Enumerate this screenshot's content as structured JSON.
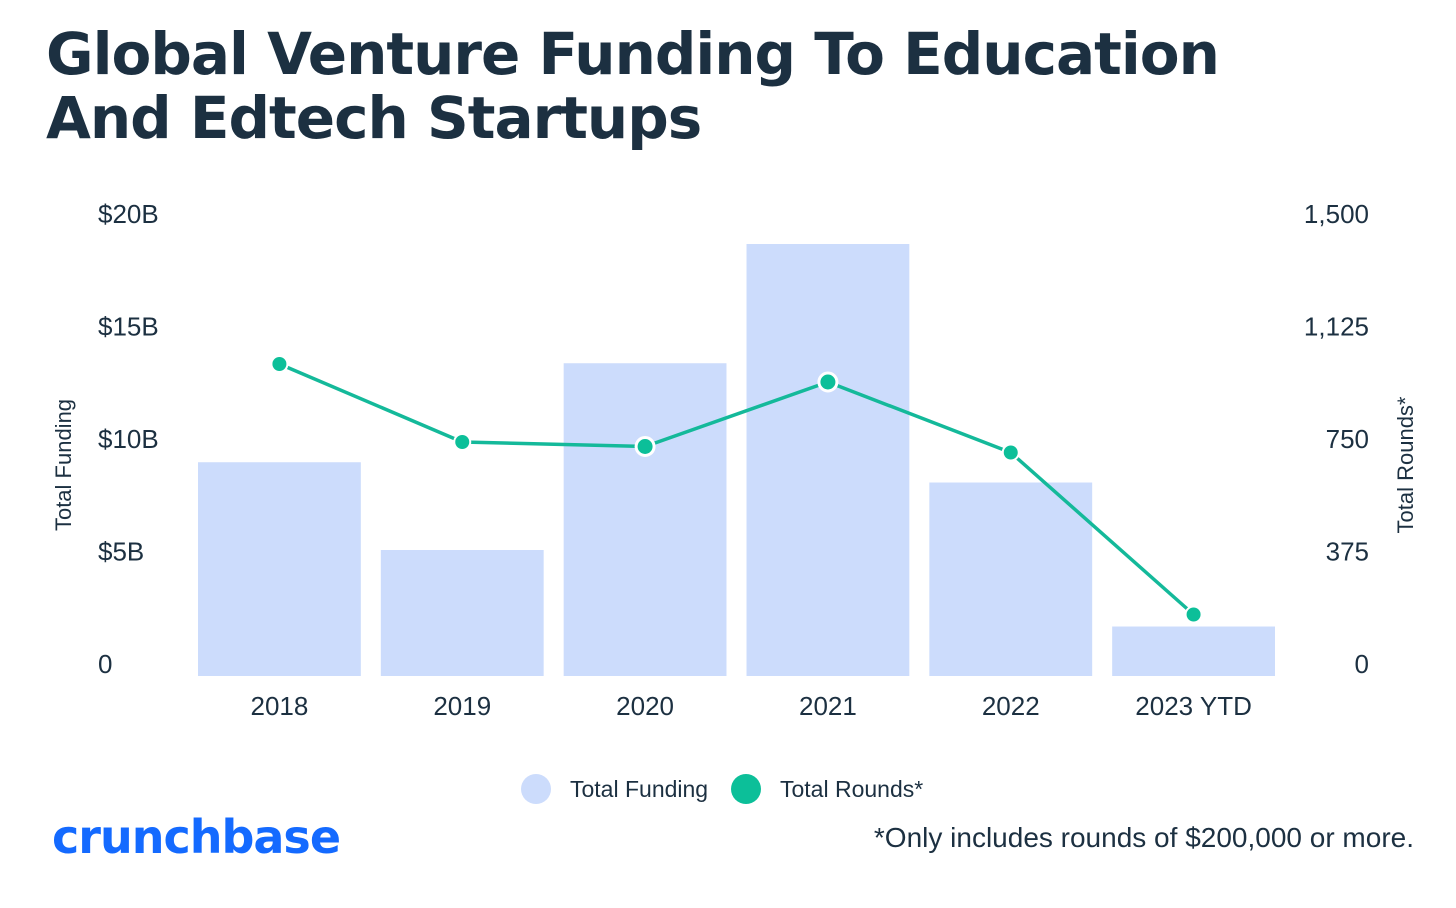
{
  "title": {
    "line1": "Global Venture Funding To Education",
    "line2": "And Edtech Startups"
  },
  "brand": "crunchbase",
  "footnote": "*Only includes rounds of $200,000 or more.",
  "colors": {
    "title": "#1c3041",
    "bar": "#ccdcfc",
    "line": "#14b99a",
    "dot": "#0cbf99",
    "brand": "#146aff"
  },
  "chart_data": {
    "type": "bar",
    "combo": "bar+line",
    "categories": [
      "2018",
      "2019",
      "2020",
      "2021",
      "2022",
      "2023 YTD"
    ],
    "series": [
      {
        "name": "Total Funding",
        "type": "bar",
        "axis": "left",
        "unit": "USD billions",
        "values": [
          9.5,
          5.6,
          13.9,
          19.2,
          8.6,
          2.2
        ]
      },
      {
        "name": "Total Rounds*",
        "type": "line",
        "axis": "right",
        "values": [
          1040,
          780,
          765,
          980,
          745,
          205
        ]
      }
    ],
    "y_left": {
      "label": "Total Funding",
      "range": [
        0,
        20
      ],
      "ticks": [
        0,
        5,
        10,
        15,
        20
      ],
      "tick_labels": [
        "0",
        "$5B",
        "$10B",
        "$15B",
        "$20B"
      ]
    },
    "y_right": {
      "label": "Total Rounds*",
      "range": [
        0,
        1500
      ],
      "ticks": [
        0,
        375,
        750,
        1125,
        1500
      ],
      "tick_labels": [
        "0",
        "375",
        "750",
        "1,125",
        "1,500"
      ]
    },
    "legend": [
      "Total Funding",
      "Total Rounds*"
    ],
    "legend_position": "bottom-center",
    "grid": false
  }
}
